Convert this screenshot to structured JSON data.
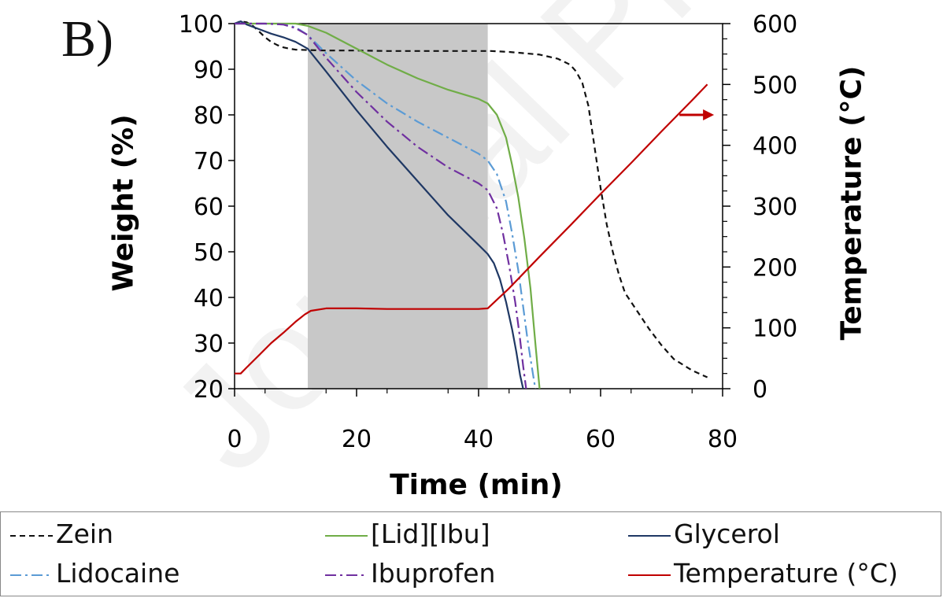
{
  "panel_label": "B)",
  "watermark": "Journal Pre-proof",
  "colors": {
    "zein": "#111111",
    "lid_ibu": "#70ad47",
    "glycerol": "#1f3864",
    "lidocaine": "#5b9bd5",
    "ibuprofen": "#7030a0",
    "temperature": "#c00000",
    "shade": "#c8c8c8",
    "axis": "#000000"
  },
  "chart_data": {
    "type": "line",
    "xlabel": "Time (min)",
    "ylabel": "Weight (%)",
    "y2label": "Temperature (°C)",
    "xlim": [
      0,
      80
    ],
    "ylim": [
      20,
      100
    ],
    "y2lim": [
      0,
      600
    ],
    "xticks": [
      "0",
      "20",
      "40",
      "60",
      "80"
    ],
    "yticks": [
      "20",
      "30",
      "40",
      "50",
      "60",
      "70",
      "80",
      "90",
      "100"
    ],
    "y2ticks": [
      "0",
      "100",
      "200",
      "300",
      "400",
      "500",
      "600"
    ],
    "shaded_region": [
      12,
      41.5
    ],
    "annotation_arrow": {
      "x": 75.5,
      "y2": 450,
      "direction": "right"
    },
    "grid": false,
    "legend_position": "bottom",
    "series": [
      {
        "name": "Zein",
        "axis": "left",
        "style": "dashed",
        "colorKey": "zein",
        "x": [
          0,
          1,
          2,
          3,
          4,
          5,
          6,
          7,
          8,
          9,
          10,
          12,
          15,
          20,
          25,
          30,
          35,
          40,
          42,
          45,
          50,
          53,
          55,
          56,
          57,
          58,
          59,
          60,
          61,
          62,
          63,
          64,
          66,
          68,
          70,
          72,
          75,
          77.5
        ],
        "y": [
          100,
          100.5,
          100.3,
          99.5,
          98.3,
          97,
          96,
          95.3,
          94.8,
          94.5,
          94.3,
          94.2,
          94.1,
          94.1,
          94,
          94,
          94,
          94,
          94,
          93.8,
          93.2,
          92.3,
          91,
          89.5,
          87,
          82,
          73,
          64,
          56,
          50,
          45,
          41,
          37,
          33,
          29.5,
          26.5,
          24,
          22.5
        ]
      },
      {
        "name": "[Lid][Ibu]",
        "axis": "left",
        "style": "solid",
        "colorKey": "lid_ibu",
        "x": [
          0,
          2,
          5,
          10,
          12,
          15,
          20,
          25,
          30,
          35,
          40,
          41.5,
          43,
          44.5,
          45.5,
          46.5,
          47.5,
          48.5,
          49.3,
          50
        ],
        "y": [
          100,
          100,
          100,
          100,
          99.5,
          98,
          94.5,
          91,
          88,
          85.5,
          83.5,
          82.5,
          80,
          75,
          69,
          62,
          53,
          42,
          30,
          20
        ]
      },
      {
        "name": "Glycerol",
        "axis": "left",
        "style": "solid",
        "colorKey": "glycerol",
        "x": [
          0,
          1,
          2,
          4,
          6,
          8,
          10,
          12,
          15,
          20,
          25,
          30,
          35,
          40,
          41.5,
          42.5,
          43.5,
          44.5,
          45.5,
          46.2,
          46.8,
          47.3
        ],
        "y": [
          100,
          100.5,
          99.8,
          98.8,
          97.8,
          97,
          96,
          94.5,
          89.5,
          81,
          73,
          65.5,
          58,
          51.5,
          49.5,
          47.5,
          44,
          39,
          33,
          28,
          23,
          20
        ]
      },
      {
        "name": "Lidocaine",
        "axis": "left",
        "style": "dashdot",
        "colorKey": "lidocaine",
        "x": [
          0,
          2,
          5,
          8,
          10,
          12,
          15,
          20,
          25,
          30,
          35,
          40,
          41.5,
          43,
          44.5,
          45.5,
          46.5,
          47.3,
          48,
          48.7,
          49.3
        ],
        "y": [
          100,
          100,
          100,
          99.8,
          99.2,
          97.5,
          93.5,
          87.5,
          82.5,
          78.5,
          75,
          71.5,
          70,
          67,
          61,
          54,
          46,
          38,
          31,
          25,
          20
        ]
      },
      {
        "name": "Ibuprofen",
        "axis": "left",
        "style": "dashdot",
        "colorKey": "ibuprofen",
        "x": [
          0,
          2,
          5,
          8,
          10,
          12,
          15,
          20,
          25,
          30,
          35,
          40,
          41.5,
          43,
          44,
          45,
          46,
          46.7,
          47.3,
          47.8
        ],
        "y": [
          100,
          100,
          100,
          99.8,
          99,
          97.5,
          92.5,
          85,
          78.5,
          73,
          68.5,
          65,
          63.5,
          59.5,
          54,
          47,
          39,
          32,
          25,
          20
        ]
      },
      {
        "name": "Temperature (°C)",
        "axis": "right",
        "style": "solid",
        "colorKey": "temperature",
        "x": [
          0,
          1,
          2,
          4,
          6,
          8,
          10,
          11.5,
          12.5,
          15,
          20,
          25,
          30,
          35,
          40,
          41.5,
          45,
          50,
          55,
          60,
          65,
          70,
          75,
          77.5
        ],
        "y": [
          25,
          25,
          35,
          55,
          75,
          92,
          110,
          122,
          128,
          132,
          132,
          131,
          131,
          131,
          131,
          132,
          165,
          217,
          268,
          320,
          371,
          423,
          474,
          500
        ]
      }
    ]
  },
  "legend": [
    {
      "label": "Zein",
      "style": "dashed",
      "colorKey": "zein"
    },
    {
      "label": "[Lid][Ibu]",
      "style": "solid",
      "colorKey": "lid_ibu"
    },
    {
      "label": "Glycerol",
      "style": "solid",
      "colorKey": "glycerol"
    },
    {
      "label": "Lidocaine",
      "style": "dashdot",
      "colorKey": "lidocaine"
    },
    {
      "label": "Ibuprofen",
      "style": "dashdot",
      "colorKey": "ibuprofen"
    },
    {
      "label": "Temperature (°C)",
      "style": "solid",
      "colorKey": "temperature"
    }
  ]
}
